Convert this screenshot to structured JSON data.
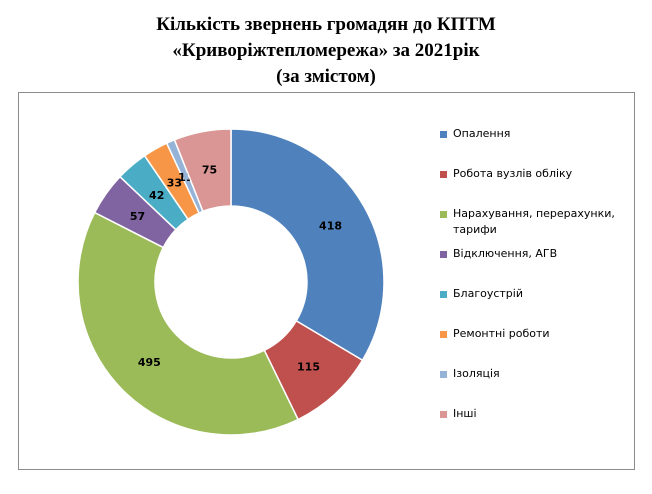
{
  "title_lines": [
    "Кількість звернень громадян до КПТМ",
    "«Криворіжтепломережа» за 2021рік",
    "(за змістом)"
  ],
  "chart_data": {
    "type": "pie",
    "variant": "donut",
    "title": "Кількість звернень громадян до КПТМ «Криворіжтепломережа» за 2021рік (за змістом)",
    "legend_position": "right",
    "categories": [
      "Опалення",
      "Робота вузлів обліку",
      "Нарахування, перерахунки, тарифи",
      "Відключення, АГВ",
      "Благоустрій",
      "Ремонтні роботи",
      "Ізоляція",
      "Інші"
    ],
    "values": [
      418,
      115,
      495,
      57,
      42,
      33,
      11,
      75
    ],
    "colors": [
      "#4f81bd",
      "#c0504d",
      "#9bbb59",
      "#8064a2",
      "#4bacc6",
      "#f79646",
      "#95b3d7",
      "#d99694"
    ],
    "data_labels": [
      "418",
      "115",
      "495",
      "57",
      "42",
      "33",
      "11",
      "75"
    ]
  }
}
